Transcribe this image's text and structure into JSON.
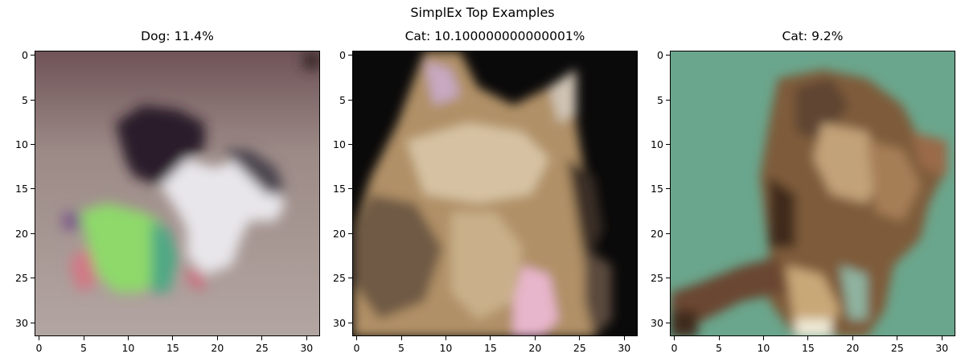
{
  "figure": {
    "title": "SimplEx Top Examples"
  },
  "chart_data": [
    {
      "type": "image",
      "title": "Dog: 11.4%",
      "xticks": [
        0,
        5,
        10,
        15,
        20,
        25,
        30
      ],
      "yticks": [
        0,
        5,
        10,
        15,
        20,
        25,
        30
      ],
      "xlim": [
        -0.5,
        31.5
      ],
      "ylim": [
        31.5,
        -0.5
      ],
      "colors": {
        "background": "#a79893",
        "dark_subject": "#2a1e2a",
        "light_subject": "#e8e6ea",
        "toy": "#8ed96a",
        "toy_side": "#4fa884",
        "toy_pink": "#d07a86"
      }
    },
    {
      "type": "image",
      "title": "Cat: 10.100000000000001%",
      "xticks": [
        0,
        5,
        10,
        15,
        20,
        25,
        30
      ],
      "yticks": [
        0,
        5,
        10,
        15,
        20,
        25,
        30
      ],
      "xlim": [
        -0.5,
        31.5
      ],
      "ylim": [
        31.5,
        -0.5
      ],
      "colors": {
        "background": "#0b0a0a",
        "fur": "#b09066",
        "fur_light": "#d6c2a2",
        "fur_dark": "#6f5a44",
        "ear_pink": "#c7a9c2",
        "chest_pink": "#e8b6cc"
      }
    },
    {
      "type": "image",
      "title": "Cat: 9.2%",
      "xticks": [
        0,
        5,
        10,
        15,
        20,
        25,
        30
      ],
      "yticks": [
        0,
        5,
        10,
        15,
        20,
        25,
        30
      ],
      "xlim": [
        -0.5,
        31.5
      ],
      "ylim": [
        31.5,
        -0.5
      ],
      "colors": {
        "background": "#6aa68d",
        "fur": "#7e5c3a",
        "fur_light": "#c2a278",
        "fur_dark": "#3f2a1e",
        "paw_light": "#efe9d6"
      }
    }
  ]
}
